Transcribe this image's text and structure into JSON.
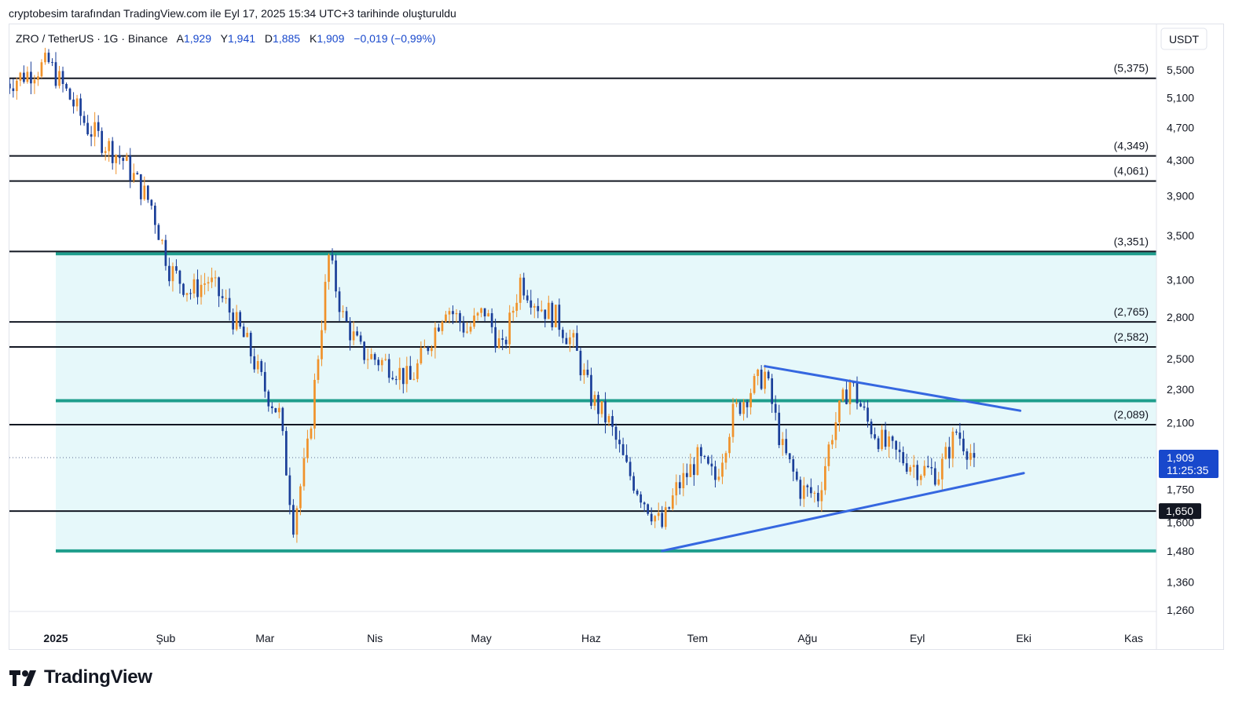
{
  "header": {
    "caption": "cryptobesim tarafından TradingView.com ile Eyl 17, 2025 15:34 UTC+3 tarihinde oluşturuldu"
  },
  "legend": {
    "symbol": "ZRO / TetherUS · 1G · Binance",
    "open_label": "A",
    "open": "1,929",
    "high_label": "Y",
    "high": "1,941",
    "low_label": "D",
    "low": "1,885",
    "close_label": "K",
    "close": "1,909",
    "change": "−0,019 (−0,99%)"
  },
  "currency_button": "USDT",
  "brand": "TradingView",
  "colors": {
    "up": "#f0922b",
    "down": "#1b3f99",
    "zone_fill": "#e6f8fa",
    "zone_line": "#1e9e8c",
    "trend_line": "#3567e0",
    "level_line": "#131722",
    "price_badge": "#1848cc",
    "legend_values": "#1848cc"
  },
  "chart_data": {
    "type": "candlestick",
    "timeframe": "1G",
    "y_scale": "log",
    "ylim": [
      1.2,
      6.0
    ],
    "y_ticks": [
      {
        "v": 5.5,
        "label": "5,500"
      },
      {
        "v": 5.1,
        "label": "5,100"
      },
      {
        "v": 4.7,
        "label": "4,700"
      },
      {
        "v": 4.3,
        "label": "4,300"
      },
      {
        "v": 3.9,
        "label": "3,900"
      },
      {
        "v": 3.5,
        "label": "3,500"
      },
      {
        "v": 3.1,
        "label": "3,100"
      },
      {
        "v": 2.8,
        "label": "2,800"
      },
      {
        "v": 2.5,
        "label": "2,500"
      },
      {
        "v": 2.3,
        "label": "2,300"
      },
      {
        "v": 2.1,
        "label": "2,100"
      },
      {
        "v": 1.75,
        "label": "1,750"
      },
      {
        "v": 1.6,
        "label": "1,600"
      },
      {
        "v": 1.48,
        "label": "1,480"
      },
      {
        "v": 1.36,
        "label": "1,360"
      },
      {
        "v": 1.26,
        "label": "1,260"
      }
    ],
    "x_ticks": [
      {
        "date": "2025-01-01",
        "label": "2025",
        "bold": true
      },
      {
        "date": "2025-02-01",
        "label": "Şub"
      },
      {
        "date": "2025-03-01",
        "label": "Mar"
      },
      {
        "date": "2025-04-01",
        "label": "Nis"
      },
      {
        "date": "2025-05-01",
        "label": "May"
      },
      {
        "date": "2025-06-01",
        "label": "Haz"
      },
      {
        "date": "2025-07-01",
        "label": "Tem"
      },
      {
        "date": "2025-08-01",
        "label": "Ağu"
      },
      {
        "date": "2025-09-01",
        "label": "Eyl"
      },
      {
        "date": "2025-10-01",
        "label": "Eki"
      },
      {
        "date": "2025-11-01",
        "label": "Kas"
      }
    ],
    "x_range": [
      "2024-12-18",
      "2025-11-14"
    ],
    "last_price": {
      "value": 1.909,
      "label": "1,909",
      "countdown": "11:25:35"
    },
    "price_marker": {
      "value": 1.65,
      "label": "1,650"
    },
    "horizontal_levels": [
      {
        "value": 5.375,
        "label": "(5,375)"
      },
      {
        "value": 4.349,
        "label": "(4,349)"
      },
      {
        "value": 4.061,
        "label": "(4,061)"
      },
      {
        "value": 3.351,
        "label": "(3,351)"
      },
      {
        "value": 2.765,
        "label": "(2,765)"
      },
      {
        "value": 2.582,
        "label": "(2,582)"
      },
      {
        "value": 2.089,
        "label": "(2,089)"
      },
      {
        "value": 1.65,
        "label": ""
      }
    ],
    "zone": {
      "start": "2025-01-01",
      "top": 3.33,
      "mid": 2.23,
      "bottom": 1.48
    },
    "trend_lines": [
      {
        "from": {
          "date": "2025-07-20",
          "value": 2.45
        },
        "to": {
          "date": "2025-09-30",
          "value": 2.17
        }
      },
      {
        "from": {
          "date": "2025-06-21",
          "value": 1.48
        },
        "to": {
          "date": "2025-10-01",
          "value": 1.83
        }
      }
    ],
    "candle_date": [
      "2024-12-18",
      "2024-12-30",
      "2025-01-10",
      "2025-01-20",
      "2025-01-28",
      "2025-02-02",
      "2025-02-08",
      "2025-02-13",
      "2025-02-18",
      "2025-02-24",
      "2025-03-01",
      "2025-03-05",
      "2025-03-09",
      "2025-03-13",
      "2025-03-19",
      "2025-03-23",
      "2025-03-28",
      "2025-04-01",
      "2025-04-06",
      "2025-04-11",
      "2025-04-16",
      "2025-04-21",
      "2025-04-27",
      "2025-05-02",
      "2025-05-07",
      "2025-05-12",
      "2025-05-17",
      "2025-05-22",
      "2025-05-27",
      "2025-06-01",
      "2025-06-06",
      "2025-06-11",
      "2025-06-16",
      "2025-06-21",
      "2025-06-25",
      "2025-07-01",
      "2025-07-06",
      "2025-07-11",
      "2025-07-16",
      "2025-07-20",
      "2025-07-25",
      "2025-07-30",
      "2025-08-04",
      "2025-08-08",
      "2025-08-13",
      "2025-08-18",
      "2025-08-23",
      "2025-08-28",
      "2025-09-02",
      "2025-09-07",
      "2025-09-12",
      "2025-09-17"
    ],
    "candle_close": [
      5.3,
      5.6,
      4.7,
      4.3,
      3.8,
      3.2,
      3.0,
      3.1,
      2.9,
      2.6,
      2.3,
      2.15,
      1.6,
      1.95,
      3.3,
      2.8,
      2.55,
      2.5,
      2.45,
      2.35,
      2.6,
      2.9,
      2.7,
      2.85,
      2.55,
      3.1,
      2.9,
      2.8,
      2.6,
      2.25,
      2.1,
      1.85,
      1.7,
      1.58,
      1.75,
      1.9,
      1.8,
      2.15,
      2.3,
      2.4,
      1.95,
      1.75,
      1.72,
      2.05,
      2.35,
      2.1,
      1.97,
      1.9,
      1.85,
      1.83,
      2.05,
      1.909
    ]
  }
}
